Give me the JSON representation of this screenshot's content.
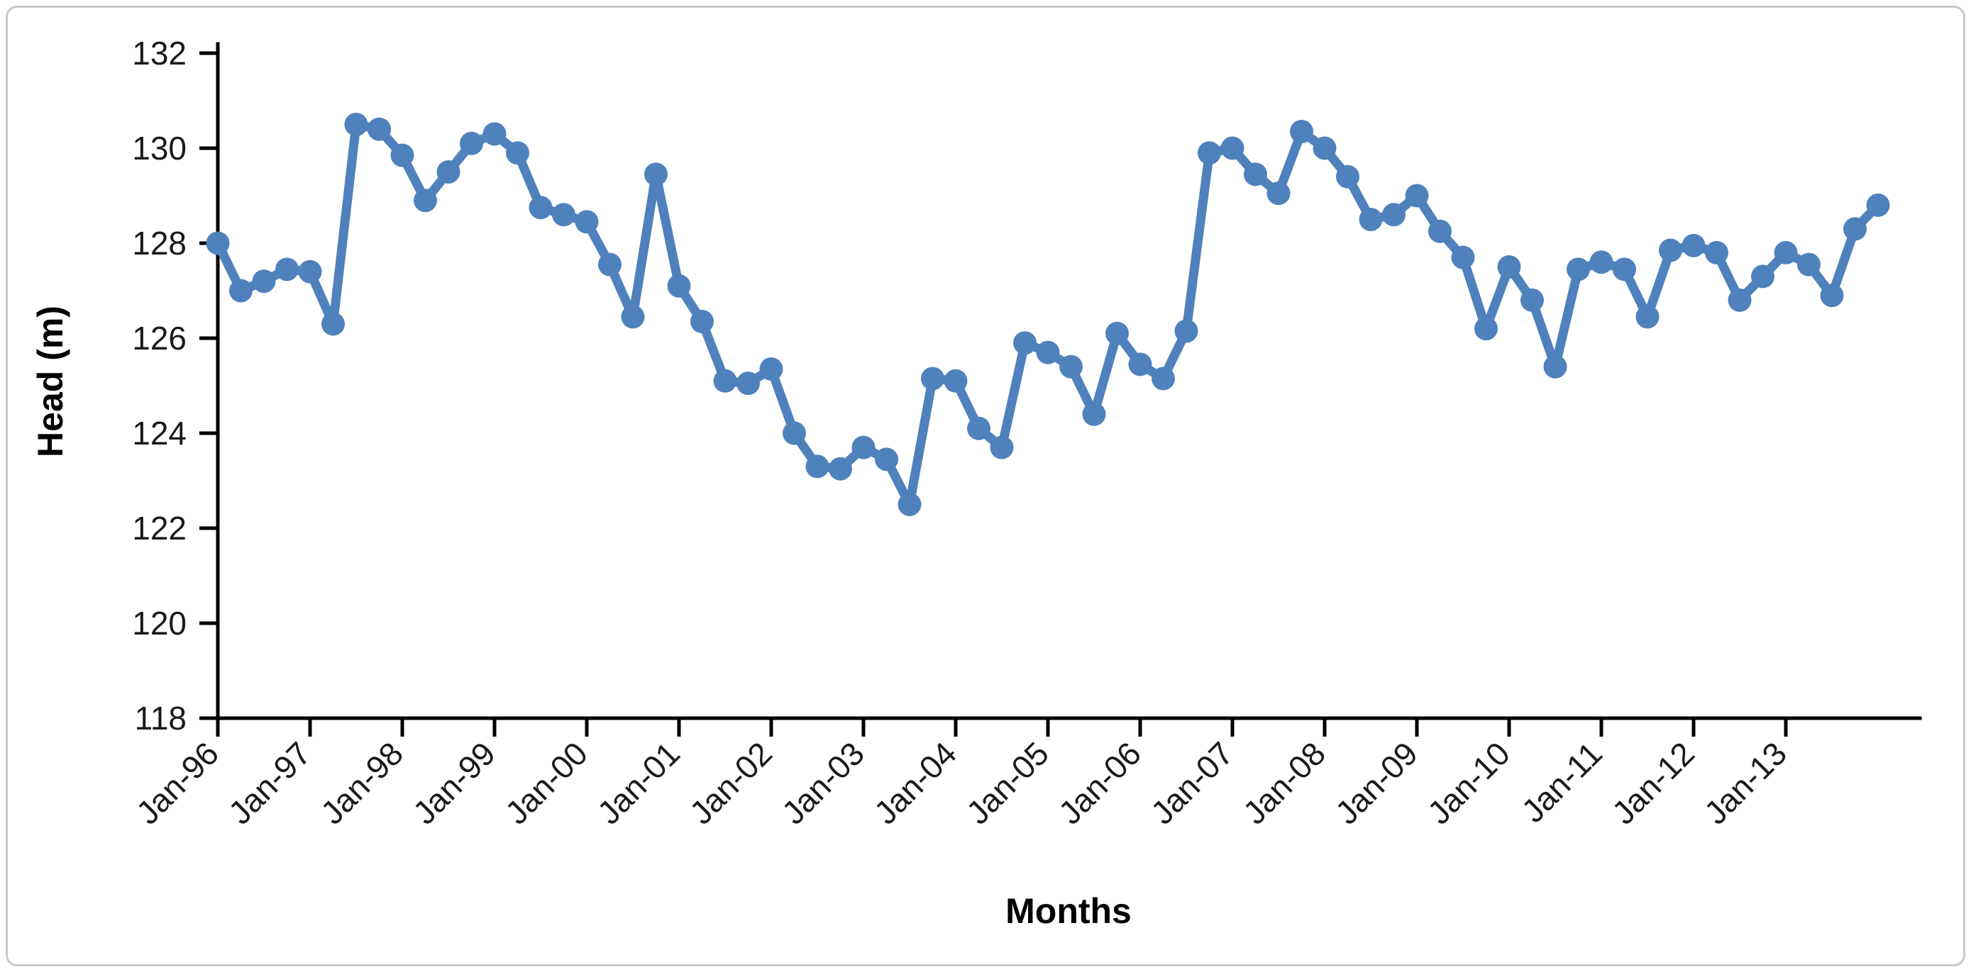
{
  "figure": {
    "background_color": "#ffffff",
    "border_color": "#c9c9c9",
    "axis_color": "#000000",
    "tick_label_color": "#1a1a1a"
  },
  "chart_data": {
    "type": "line",
    "title": "",
    "xlabel": "Months",
    "ylabel": "Head (m)",
    "ylim": [
      118,
      132
    ],
    "y_tick_step": 2,
    "grid": "off",
    "legend": "none",
    "marker": "circle",
    "y_tick_labels": [
      "118",
      "120",
      "122",
      "124",
      "126",
      "128",
      "130",
      "132"
    ],
    "x_tick_labels": [
      "Jan-96",
      "Jan-97",
      "Jan-98",
      "Jan-99",
      "Jan-00",
      "Jan-01",
      "Jan-02",
      "Jan-03",
      "Jan-04",
      "Jan-05",
      "Jan-06",
      "Jan-07",
      "Jan-08",
      "Jan-09",
      "Jan-10",
      "Jan-11",
      "Jan-12",
      "Jan-13"
    ],
    "x": [
      "Jan-96",
      "Apr-96",
      "Jul-96",
      "Oct-96",
      "Jan-97",
      "Apr-97",
      "Jul-97",
      "Oct-97",
      "Jan-98",
      "Apr-98",
      "Jul-98",
      "Oct-98",
      "Jan-99",
      "Apr-99",
      "Jul-99",
      "Oct-99",
      "Jan-00",
      "Apr-00",
      "Jul-00",
      "Oct-00",
      "Jan-01",
      "Apr-01",
      "Jul-01",
      "Oct-01",
      "Jan-02",
      "Apr-02",
      "Jul-02",
      "Oct-02",
      "Jan-03",
      "Apr-03",
      "Jul-03",
      "Oct-03",
      "Jan-04",
      "Apr-04",
      "Jul-04",
      "Oct-04",
      "Jan-05",
      "Apr-05",
      "Jul-05",
      "Oct-05",
      "Jan-06",
      "Apr-06",
      "Jul-06",
      "Oct-06",
      "Jan-07",
      "Apr-07",
      "Jul-07",
      "Oct-07",
      "Jan-08",
      "Apr-08",
      "Jul-08",
      "Oct-08",
      "Jan-09",
      "Apr-09",
      "Jul-09",
      "Oct-09",
      "Jan-10",
      "Apr-10",
      "Jul-10",
      "Oct-10",
      "Jan-11",
      "Apr-11",
      "Jul-11",
      "Oct-11",
      "Jan-12",
      "Apr-12",
      "Jul-12",
      "Oct-12",
      "Jan-13",
      "Apr-13",
      "Jul-13",
      "Oct-13",
      "Jan-14"
    ],
    "series": [
      {
        "name": "Head",
        "color": "#4F81BD",
        "values": [
          128.0,
          127.0,
          127.2,
          127.45,
          127.4,
          126.3,
          130.5,
          130.4,
          129.85,
          128.9,
          129.5,
          130.1,
          130.3,
          129.9,
          128.75,
          128.6,
          128.45,
          127.55,
          126.45,
          129.45,
          127.1,
          126.35,
          125.1,
          125.05,
          125.35,
          124.0,
          123.3,
          123.25,
          123.7,
          123.45,
          122.5,
          125.15,
          125.1,
          124.1,
          123.7,
          125.9,
          125.7,
          125.4,
          124.4,
          126.1,
          125.45,
          125.15,
          126.15,
          129.9,
          130.0,
          129.45,
          129.05,
          130.35,
          130.0,
          129.4,
          128.5,
          128.6,
          129.0,
          128.25,
          127.7,
          126.2,
          127.5,
          126.8,
          125.4,
          127.45,
          127.6,
          127.45,
          126.45,
          127.85,
          127.95,
          127.8,
          126.8,
          127.3,
          127.8,
          127.55,
          126.9,
          128.3,
          128.8
        ]
      }
    ]
  }
}
